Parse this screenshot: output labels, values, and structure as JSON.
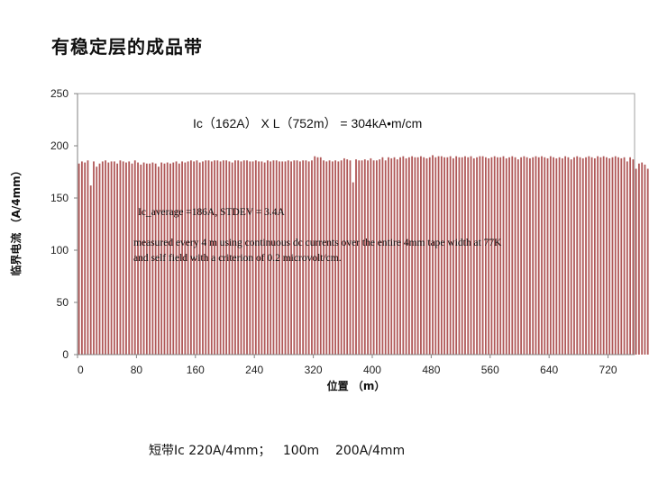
{
  "slide": {
    "title": "有稳定层的成品带",
    "footnote": "短带Ic 220A/4mm；   100m    200A/4mm"
  },
  "chart_data": {
    "type": "bar",
    "title": "",
    "xlabel": "位置  （m）",
    "ylabel": "临界电流  （A/4mm）",
    "xlim": [
      0,
      756
    ],
    "ylim": [
      0,
      250
    ],
    "x_ticks": [
      0,
      80,
      160,
      240,
      320,
      400,
      480,
      560,
      640,
      720
    ],
    "y_ticks": [
      0,
      50,
      100,
      150,
      200,
      250
    ],
    "grid": false,
    "legend": "none",
    "bar_color": "#b05858",
    "bar_spacing_m": 4,
    "annotations": [
      "Ic（162A） X   L（752m） = 304kA•m/cm",
      "Ic_average =186A, STDEV = 3.4A",
      "measured every 4 m using continuous dc currents over the entire 4mm tape width at 77K",
      "and self field with a criterion of 0.2 microvolt/cm."
    ],
    "values": [
      183,
      185,
      184,
      186,
      162,
      185,
      180,
      183,
      185,
      186,
      184,
      185,
      185,
      183,
      186,
      185,
      184,
      185,
      183,
      186,
      184,
      182,
      184,
      183,
      183,
      184,
      183,
      180,
      184,
      183,
      184,
      183,
      184,
      185,
      183,
      185,
      184,
      185,
      186,
      185,
      186,
      184,
      185,
      186,
      186,
      185,
      186,
      186,
      185,
      186,
      186,
      185,
      184,
      186,
      186,
      185,
      186,
      186,
      185,
      185,
      186,
      185,
      185,
      184,
      186,
      185,
      186,
      186,
      185,
      185,
      185,
      186,
      185,
      186,
      186,
      185,
      186,
      186,
      185,
      186,
      190,
      189,
      189,
      186,
      185,
      186,
      185,
      186,
      185,
      186,
      188,
      187,
      186,
      165,
      187,
      186,
      186,
      187,
      186,
      188,
      186,
      186,
      187,
      189,
      186,
      189,
      188,
      189,
      187,
      189,
      190,
      188,
      189,
      190,
      189,
      189,
      190,
      189,
      188,
      189,
      191,
      189,
      190,
      190,
      189,
      189,
      190,
      188,
      190,
      189,
      189,
      190,
      189,
      190,
      188,
      189,
      190,
      190,
      189,
      188,
      189,
      190,
      189,
      189,
      190,
      188,
      189,
      190,
      189,
      187,
      189,
      190,
      189,
      188,
      189,
      190,
      189,
      190,
      189,
      188,
      190,
      189,
      188,
      189,
      188,
      190,
      189,
      187,
      189,
      190,
      189,
      188,
      189,
      190,
      189,
      188,
      190,
      189,
      190,
      189,
      188,
      189,
      190,
      189,
      188,
      189,
      185,
      189,
      187,
      178,
      183,
      184,
      182,
      178
    ]
  }
}
